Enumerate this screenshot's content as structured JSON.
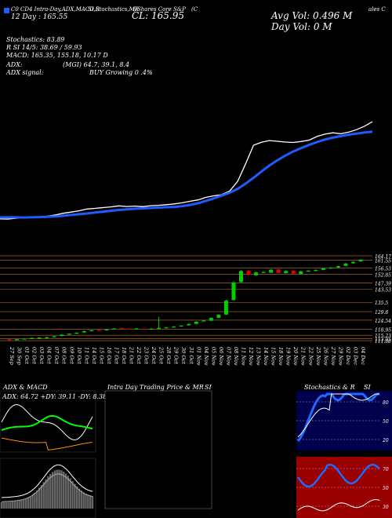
{
  "header": {
    "ticker_line": "C0 CD4 Intra-Day,ADX,MACD,R",
    "ticker_line2": "SI,Stochastics,MR",
    "ticker_line3": "(iShares Core S&P",
    "c_label": "(C",
    "tail": "ales C",
    "day_line": "12  Day  :   165.55",
    "cl_line": "CL: 165.95",
    "avg_vol": "Avg Vol: 0.496  M",
    "day_vol": "Day Vol: 0   M"
  },
  "stats": {
    "stochastics": "Stochastics: 83.89",
    "rsi": "R          SI 14/5: 38.69 / 59.93",
    "macd": "MACD: 165.35,  155.18,  10.17 D",
    "adx": "ADX:",
    "adx_values": "(MGI) 64.7,  39.1,  8.4",
    "adx_signal": "ADX  signal:",
    "signal_text": "BUY Growing 0 .4%"
  },
  "colors": {
    "background": "#000000",
    "price_line": "#ffffff",
    "ma_line": "#1f5bff",
    "up_candle": "#00d000",
    "down_candle": "#e00000",
    "gridline": "#c07b2a"
  },
  "chart_data": [
    {
      "type": "line",
      "name": "main-price-ma",
      "x": [
        "27 Sep",
        "30 Sep",
        "01 Oct",
        "02 Oct",
        "03 Oct",
        "04 Oct",
        "07 Oct",
        "08 Oct",
        "09 Oct",
        "10 Oct",
        "11 Oct",
        "14 Oct",
        "15 Oct",
        "16 Oct",
        "17 Oct",
        "18 Oct",
        "21 Oct",
        "22 Oct",
        "23 Oct",
        "24 Oct",
        "25 Oct",
        "28 Oct",
        "29 Oct",
        "30 Oct",
        "31 Oct",
        "01 Nov",
        "04 Nov",
        "05 Nov",
        "06 Nov",
        "07 Nov",
        "08 Nov",
        "11 Nov",
        "12 Nov",
        "13 Nov",
        "14 Nov",
        "15 Nov",
        "18 Nov",
        "19 Nov",
        "20 Nov",
        "21 Nov",
        "22 Nov",
        "25 Nov",
        "26 Nov",
        "27 Nov",
        "29 Nov",
        "02 Dec",
        "03 Dec",
        "04 Dec"
      ],
      "series": [
        {
          "values": [
            112.6,
            112.5,
            112.9,
            113.2,
            113.4,
            113.6,
            114.0,
            114.6,
            115.5,
            116.1,
            116.8,
            117.7,
            118.0,
            118.4,
            118.8,
            119.3,
            119.0,
            119.2,
            118.9,
            119.4,
            119.6,
            119.9,
            120.3,
            120.9,
            121.7,
            122.4,
            123.7,
            124.5,
            125.1,
            127.0,
            132.0,
            141.0,
            150.6,
            152.1,
            153.0,
            152.6,
            152.2,
            152.0,
            152.5,
            153.2,
            155.1,
            156.3,
            157.0,
            156.5,
            157.3,
            158.6,
            160.4,
            162.7
          ]
        },
        {
          "values": [
            113.4,
            113.4,
            113.4,
            113.3,
            113.4,
            113.5,
            113.7,
            113.9,
            114.2,
            114.6,
            115.0,
            115.4,
            115.9,
            116.3,
            116.8,
            117.2,
            117.5,
            117.8,
            118.0,
            118.2,
            118.4,
            118.6,
            118.8,
            119.2,
            119.8,
            120.7,
            121.9,
            123.2,
            124.6,
            126.1,
            128.1,
            130.8,
            133.8,
            137.0,
            140.1,
            142.8,
            145.2,
            147.3,
            149.1,
            150.7,
            152.2,
            153.5,
            154.5,
            155.3,
            156.0,
            156.6,
            157.1,
            157.6
          ]
        }
      ],
      "ylim": [
        100,
        185
      ]
    },
    {
      "type": "bar",
      "name": "candles",
      "categories": [
        "27 Sep",
        "30 Sep",
        "01 Oct",
        "02 Oct",
        "03 Oct",
        "04 Oct",
        "07 Oct",
        "08 Oct",
        "09 Oct",
        "10 Oct",
        "11 Oct",
        "14 Oct",
        "15 Oct",
        "16 Oct",
        "17 Oct",
        "18 Oct",
        "21 Oct",
        "22 Oct",
        "23 Oct",
        "24 Oct",
        "25 Oct",
        "28 Oct",
        "29 Oct",
        "30 Oct",
        "31 Oct",
        "01 Nov",
        "04 Nov",
        "05 Nov",
        "06 Nov",
        "07 Nov",
        "08 Nov",
        "11 Nov",
        "12 Nov",
        "13 Nov",
        "14 Nov",
        "15 Nov",
        "18 Nov",
        "19 Nov",
        "20 Nov",
        "21 Nov",
        "22 Nov",
        "25 Nov",
        "26 Nov",
        "27 Nov",
        "29 Nov",
        "02 Dec",
        "03 Dec",
        "04 Dec"
      ],
      "open": [
        112.8,
        112.6,
        112.9,
        113.3,
        113.6,
        113.7,
        114.1,
        114.8,
        115.9,
        116.2,
        117.0,
        118.1,
        118.5,
        118.4,
        118.9,
        119.6,
        119.3,
        119.1,
        119.2,
        119.0,
        119.5,
        119.8,
        120.2,
        120.7,
        121.4,
        122.3,
        124.0,
        124.2,
        126.0,
        128.0,
        137.0,
        148.0,
        155.0,
        152.2,
        154.0,
        153.8,
        155.8,
        153.5,
        155.0,
        153.0,
        154.8,
        155.0,
        155.5,
        156.5,
        157.0,
        158.0,
        159.6,
        160.7
      ],
      "close": [
        112.5,
        112.8,
        113.2,
        113.6,
        113.8,
        114.0,
        114.6,
        115.6,
        116.2,
        116.8,
        117.8,
        118.3,
        118.4,
        118.8,
        119.4,
        119.1,
        119.0,
        119.4,
        119.0,
        119.3,
        119.8,
        120.1,
        120.6,
        121.2,
        122.2,
        123.6,
        124.3,
        125.9,
        127.8,
        136.6,
        147.8,
        154.8,
        152.5,
        153.9,
        154.2,
        155.6,
        153.6,
        154.8,
        153.2,
        154.6,
        155.0,
        155.4,
        156.4,
        156.9,
        157.8,
        159.4,
        160.4,
        161.8
      ],
      "high": [
        113.0,
        113.0,
        113.4,
        113.8,
        114.0,
        114.3,
        114.8,
        115.9,
        116.4,
        117.0,
        118.0,
        118.6,
        118.8,
        119.0,
        119.6,
        119.9,
        119.5,
        119.7,
        119.4,
        119.5,
        126.5,
        120.4,
        120.9,
        121.4,
        122.4,
        123.9,
        124.6,
        126.2,
        128.2,
        137.2,
        148.4,
        155.3,
        155.5,
        154.4,
        154.6,
        155.9,
        156.2,
        155.2,
        155.4,
        155.0,
        155.3,
        155.8,
        156.8,
        157.2,
        158.1,
        159.8,
        160.8,
        162.1
      ],
      "low": [
        112.2,
        112.3,
        112.7,
        113.1,
        113.4,
        113.5,
        113.9,
        114.6,
        115.6,
        116.0,
        116.8,
        117.8,
        118.1,
        118.2,
        118.7,
        118.9,
        118.7,
        118.9,
        118.8,
        118.8,
        119.2,
        119.6,
        120.0,
        120.5,
        121.2,
        122.1,
        123.7,
        124.0,
        125.8,
        127.7,
        136.7,
        147.6,
        152.0,
        151.9,
        153.7,
        153.5,
        153.3,
        153.2,
        152.9,
        152.7,
        154.4,
        154.7,
        155.2,
        156.2,
        156.7,
        157.7,
        159.3,
        160.5
      ],
      "ylabels": [
        "161.55",
        "164.17",
        "156.53",
        "152.85",
        "147.39",
        "143.53",
        "135.5",
        "129.8",
        "124.54",
        "118.95",
        "115.23",
        "113.05",
        "111.88"
      ],
      "ylim": [
        110,
        168
      ]
    },
    {
      "type": "line",
      "name": "adx-macd",
      "title": "ADX  & MACD",
      "text": "ADX: 64.72  +DY: 39.11  -DY: 8.38",
      "x_count": 42
    },
    {
      "type": "line",
      "name": "intraday",
      "title": "Intra Day Trading Price  & MR",
      "title_tail": "SI"
    },
    {
      "type": "line",
      "name": "stochastics-rsi",
      "title": "Stochastics & R",
      "title_tail": "SI",
      "stoch_labels": [
        "80",
        "50",
        "20"
      ],
      "rsi_labels": [
        "70",
        "50",
        "30"
      ]
    }
  ]
}
